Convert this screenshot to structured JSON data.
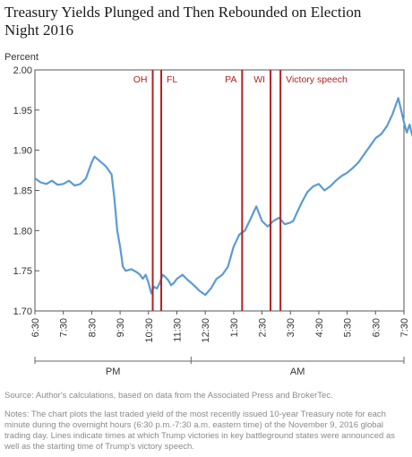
{
  "chart_data": {
    "type": "line",
    "title": "Treasury Yields Plunged and Then Rebounded on Election Night 2016",
    "ylabel": "Percent",
    "xlabel": "",
    "ylim": [
      1.7,
      2.0
    ],
    "yticks": [
      "1.70",
      "1.75",
      "1.80",
      "1.85",
      "1.90",
      "1.95",
      "2.00"
    ],
    "xticks": [
      "6:30",
      "7:30",
      "8:30",
      "9:30",
      "10:30",
      "11:30",
      "12:30",
      "1:30",
      "2:30",
      "3:30",
      "4:30",
      "5:30",
      "6:30",
      "7:30"
    ],
    "periods": [
      "PM",
      "AM"
    ],
    "x_unit": "hours after 6:30 p.m. eastern time",
    "series": [
      {
        "color": "#5b9bd5",
        "x": [
          0,
          0.2,
          0.4,
          0.6,
          0.8,
          1.0,
          1.2,
          1.4,
          1.6,
          1.8,
          2.0,
          2.1,
          2.3,
          2.5,
          2.7,
          2.8,
          2.9,
          3.0,
          3.1,
          3.2,
          3.4,
          3.6,
          3.7,
          3.8,
          3.9,
          4.0,
          4.1,
          4.2,
          4.3,
          4.4,
          4.5,
          4.6,
          4.7,
          4.8,
          4.9,
          5.0,
          5.2,
          5.4,
          5.6,
          5.8,
          6.0,
          6.2,
          6.4,
          6.6,
          6.8,
          7.0,
          7.2,
          7.4,
          7.6,
          7.8,
          8.0,
          8.2,
          8.4,
          8.6,
          8.8,
          9.0,
          9.1,
          9.2,
          9.4,
          9.6,
          9.8,
          10.0,
          10.2,
          10.4,
          10.6,
          10.8,
          11.0,
          11.2,
          11.4,
          11.6,
          11.8,
          12.0,
          12.2,
          12.4,
          12.6,
          12.8,
          13.0,
          13.1,
          13.2,
          13.3,
          13.5,
          13.7,
          13.9
        ],
        "values": [
          1.865,
          1.86,
          1.858,
          1.862,
          1.857,
          1.858,
          1.862,
          1.856,
          1.858,
          1.865,
          1.885,
          1.892,
          1.886,
          1.88,
          1.87,
          1.84,
          1.8,
          1.78,
          1.755,
          1.75,
          1.752,
          1.748,
          1.745,
          1.74,
          1.745,
          1.735,
          1.722,
          1.73,
          1.728,
          1.735,
          1.745,
          1.742,
          1.738,
          1.732,
          1.735,
          1.74,
          1.745,
          1.738,
          1.732,
          1.725,
          1.72,
          1.728,
          1.74,
          1.745,
          1.755,
          1.78,
          1.795,
          1.8,
          1.815,
          1.83,
          1.812,
          1.805,
          1.812,
          1.816,
          1.808,
          1.81,
          1.812,
          1.82,
          1.835,
          1.848,
          1.855,
          1.858,
          1.85,
          1.855,
          1.862,
          1.868,
          1.872,
          1.878,
          1.885,
          1.895,
          1.905,
          1.915,
          1.92,
          1.93,
          1.945,
          1.965,
          1.935,
          1.922,
          1.932,
          1.918,
          1.915,
          1.92,
          1.924
        ]
      }
    ],
    "event_lines": [
      {
        "label": "OH",
        "x": 4.15,
        "color": "#b22222"
      },
      {
        "label": "FL",
        "x": 4.45,
        "color": "#b22222"
      },
      {
        "label": "PA",
        "x": 7.3,
        "color": "#b22222"
      },
      {
        "label": "WI",
        "x": 8.3,
        "color": "#b22222"
      },
      {
        "label": "Victory speech",
        "x": 8.65,
        "color": "#b22222"
      }
    ],
    "grid": false,
    "legend": "none"
  },
  "source": "Source:  Author's calculations, based on data from the Associated Press and BrokerTec.",
  "notes": "Notes: The chart plots the last traded yield of the most recently issued 10-year Treasury note for each minute during the overnight hours (6:30 p.m.-7:30 a.m. eastern time) of the November 9, 2016 global trading day. Lines indicate times at which Trump victories in key battleground states were announced as well as the starting time of Trump's victory speech."
}
